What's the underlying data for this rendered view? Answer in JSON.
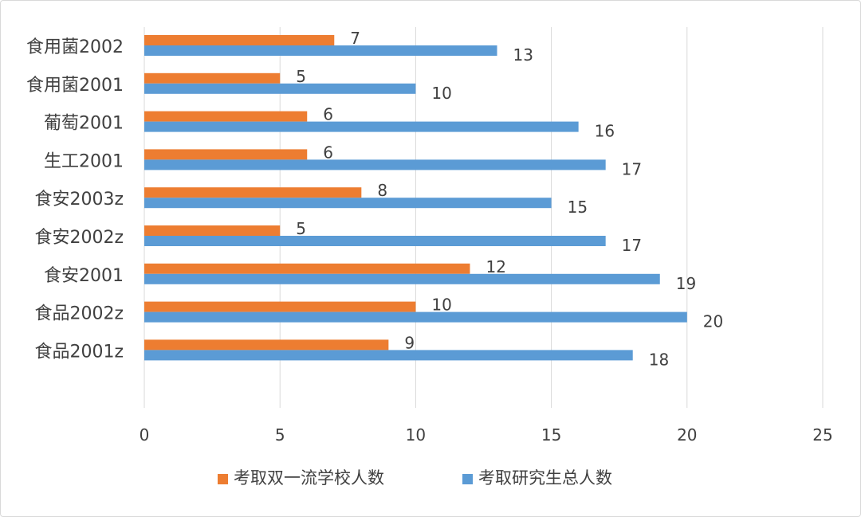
{
  "chart_data": {
    "type": "bar",
    "orientation": "horizontal",
    "categories": [
      "食用菌2002",
      "食用菌2001",
      "葡萄2001",
      "生工2001",
      "食安2003z",
      "食安2002z",
      "食安2001",
      "食品2002z",
      "食品2001z"
    ],
    "series": [
      {
        "name": "考取双一流学校人数",
        "color": "#ED7D31",
        "values": [
          7,
          5,
          6,
          6,
          8,
          5,
          12,
          10,
          9
        ]
      },
      {
        "name": "考取研究生总人数",
        "color": "#5B9BD5",
        "values": [
          13,
          10,
          16,
          17,
          15,
          17,
          19,
          20,
          18
        ]
      }
    ],
    "xlim": [
      0,
      25
    ],
    "xticks": [
      0,
      5,
      10,
      15,
      20,
      25
    ],
    "grid": "vertical",
    "legend": "bottom",
    "data_labels": true,
    "title": "",
    "xlabel": "",
    "ylabel": ""
  }
}
